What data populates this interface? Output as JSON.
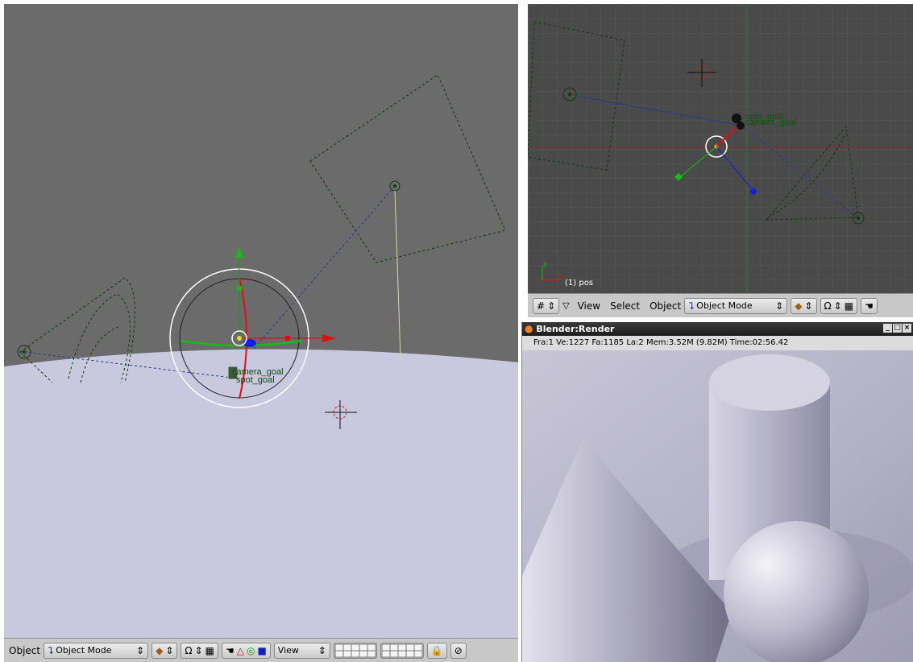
{
  "main_viewport": {
    "object_label_1": "camera_goal",
    "object_label_2": "spot_goal"
  },
  "main_header": {
    "menu_object": "Object",
    "mode_select": "Object Mode",
    "view_select": "View"
  },
  "top_viewport": {
    "object_label_1": "spot_goal",
    "object_label_2": "camera_goal",
    "frame_info": "(1) pos",
    "axis_x": "x",
    "axis_y": "y"
  },
  "top_header": {
    "menu_view": "View",
    "menu_select": "Select",
    "menu_object": "Object",
    "mode_select": "Object Mode"
  },
  "render_window": {
    "title": "Blender:Render",
    "stats": "Fra:1  Ve:1227 Fa:1185 La:2 Mem:3.52M (9.82M) Time:02:56.42"
  },
  "icons": {
    "mode": "object-mode-icon",
    "shading": "solid-shading-icon",
    "pivot": "pivot-icon",
    "manipulator": "hand-icon",
    "lock": "lock-icon"
  }
}
